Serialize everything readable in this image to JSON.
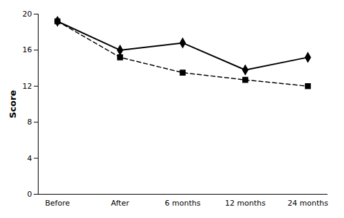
{
  "chart_data": {
    "type": "line",
    "ylabel": "Score",
    "categories": [
      "Before",
      "After",
      "6 months",
      "12 months",
      "24 months"
    ],
    "series": [
      {
        "color": "#000000",
        "marker": "diamond",
        "line_style": "solid",
        "values": [
          19.2,
          16.0,
          16.8,
          13.8,
          15.2
        ]
      },
      {
        "color": "#000000",
        "marker": "square",
        "line_style": "dashed",
        "values": [
          19.2,
          15.2,
          13.5,
          12.7,
          12.0
        ]
      }
    ],
    "ylim": [
      0,
      20
    ],
    "yticks": [
      0,
      4,
      8,
      12,
      16,
      20
    ],
    "grid": false
  }
}
